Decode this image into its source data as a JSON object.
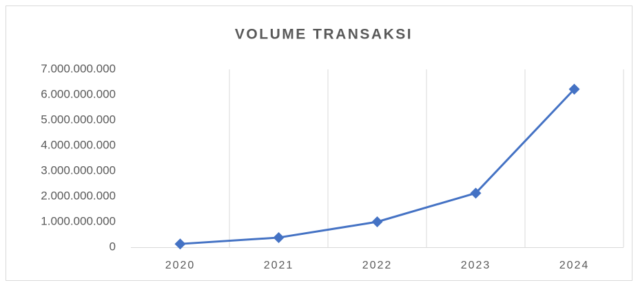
{
  "chart_data": {
    "type": "line",
    "title": "VOLUME TRANSAKSI",
    "categories": [
      "2020",
      "2021",
      "2022",
      "2023",
      "2024"
    ],
    "values": [
      130000000,
      380000000,
      1000000000,
      2130000000,
      6220000000
    ],
    "color": "#4472c4",
    "ylim": [
      0,
      7000000000
    ],
    "yticks": [
      0,
      {
        "value": 1000000000,
        "label": "1.000.000.000"
      },
      {
        "value": 2000000000,
        "label": "2.000.000.000"
      },
      {
        "value": 3000000000,
        "label": "3.000.000.000"
      },
      {
        "value": 4000000000,
        "label": "4.000.000.000"
      },
      {
        "value": 5000000000,
        "label": "5.000.000.000"
      },
      {
        "value": 6000000000,
        "label": "6.000.000.000"
      },
      {
        "value": 7000000000,
        "label": "7.000.000.000"
      }
    ],
    "grid": true
  }
}
